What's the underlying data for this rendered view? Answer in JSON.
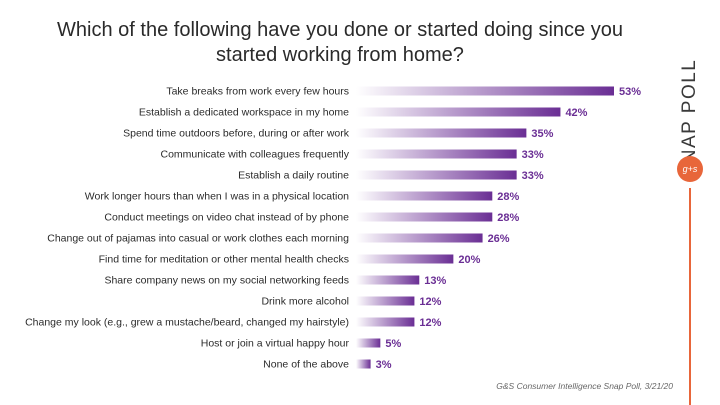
{
  "chart_data": {
    "type": "bar",
    "orientation": "horizontal",
    "title": "Which of the following have you done or started doing since you started working from home?",
    "categories": [
      "Take breaks from work every few hours",
      "Establish a dedicated workspace in my home",
      "Spend time outdoors before, during or after work",
      "Communicate with colleagues frequently",
      "Establish a daily routine",
      "Work longer hours than when I was in a physical location",
      "Conduct meetings on video chat instead of by phone",
      "Change out of pajamas into casual or work clothes each morning",
      "Find time for meditation or other mental health checks",
      "Share company news on my social networking feeds",
      "Drink more alcohol",
      "Change my look (e.g., grew a mustache/beard, changed my hairstyle)",
      "Host or join a virtual happy hour",
      "None of the above"
    ],
    "values": [
      53,
      42,
      35,
      33,
      33,
      28,
      28,
      26,
      20,
      13,
      12,
      12,
      5,
      3
    ],
    "value_labels": [
      "53%",
      "42%",
      "35%",
      "33%",
      "33%",
      "28%",
      "28%",
      "26%",
      "20%",
      "13%",
      "12%",
      "12%",
      "5%",
      "3%"
    ],
    "value_unit": "%",
    "bar_color": "#6a2e94",
    "bar_fade_color": "#ffffff",
    "grid": false
  },
  "brand": {
    "text": "SNAP POLL",
    "logo_text": "g+s",
    "accent_color": "#e8663a"
  },
  "source": "G&S Consumer Intelligence Snap Poll, 3/21/20"
}
